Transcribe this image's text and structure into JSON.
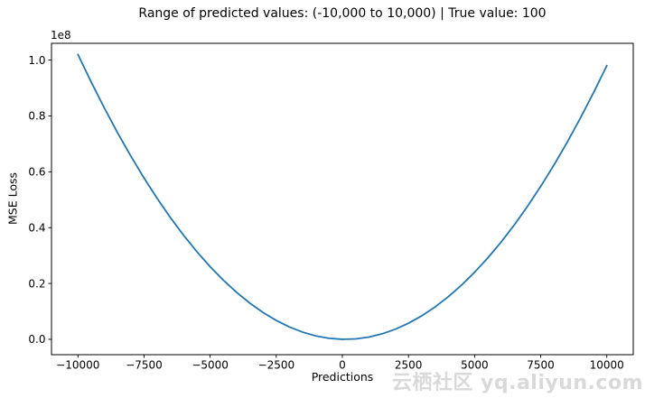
{
  "chart_data": {
    "type": "line",
    "title": "Range of predicted values: (-10,000 to 10,000) | True value: 100",
    "xlabel": "Predictions",
    "ylabel": "MSE Loss",
    "y_offset_text": "1e8",
    "true_value": 100,
    "line_color": "#1f77b4",
    "axis_color": "#000000",
    "background_color": "#ffffff",
    "grid": false,
    "legend": null,
    "xlim": [
      -11000,
      11000
    ],
    "ylim": [
      -5500000,
      106000000
    ],
    "x_ticks": [
      -10000,
      -7500,
      -5000,
      -2500,
      0,
      2500,
      5000,
      7500,
      10000
    ],
    "x_tick_labels": [
      "−10000",
      "−7500",
      "−5000",
      "−2500",
      "0",
      "2500",
      "5000",
      "7500",
      "10000"
    ],
    "y_ticks": [
      0,
      20000000,
      40000000,
      60000000,
      80000000,
      100000000
    ],
    "y_tick_labels": [
      "0.0",
      "0.2",
      "0.4",
      "0.6",
      "0.8",
      "1.0"
    ],
    "x": [
      -10000,
      -9500,
      -9000,
      -8500,
      -8000,
      -7500,
      -7000,
      -6500,
      -6000,
      -5500,
      -5000,
      -4500,
      -4000,
      -3500,
      -3000,
      -2500,
      -2000,
      -1500,
      -1000,
      -500,
      0,
      500,
      1000,
      1500,
      2000,
      2500,
      3000,
      3500,
      4000,
      4500,
      5000,
      5500,
      6000,
      6500,
      7000,
      7500,
      8000,
      8500,
      9000,
      9500,
      10000
    ],
    "y": [
      102010000,
      92160000,
      82810000,
      73960000,
      65610000,
      57760000,
      50410000,
      43560000,
      37210000,
      31360000,
      26010000,
      21160000,
      16810000,
      12960000,
      9610000,
      6760000,
      4410000,
      2560000,
      1210000,
      360000,
      10000,
      160000,
      810000,
      1960000,
      3610000,
      5760000,
      8410000,
      11560000,
      15210000,
      19360000,
      24010000,
      29160000,
      34810000,
      40960000,
      47610000,
      54760000,
      62410000,
      70560000,
      79210000,
      88360000,
      98010000
    ]
  },
  "watermark": {
    "text": "云栖社区 yq.aliyun.com"
  }
}
